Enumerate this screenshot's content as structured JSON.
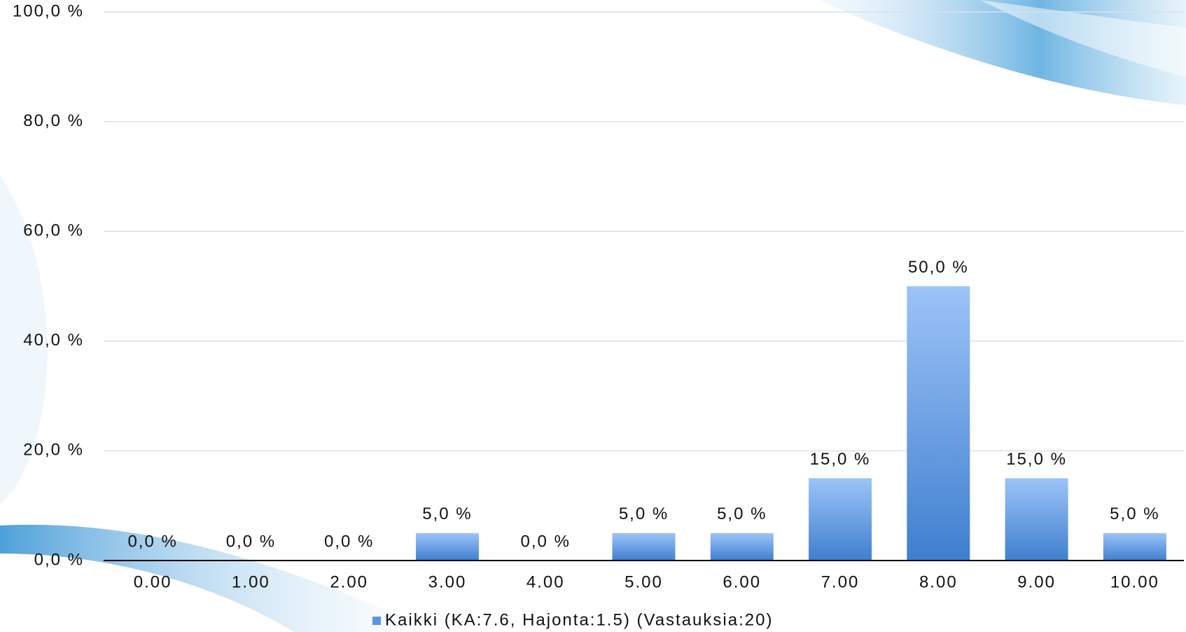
{
  "chart_data": {
    "type": "bar",
    "categories": [
      "0.00",
      "1.00",
      "2.00",
      "3.00",
      "4.00",
      "5.00",
      "6.00",
      "7.00",
      "8.00",
      "9.00",
      "10.00"
    ],
    "series": [
      {
        "name": "Kaikki (KA:7.6, Hajonta:1.5) (Vastauksia:20)",
        "color": "#5b93e0",
        "values": [
          0,
          0,
          0,
          5,
          0,
          5,
          5,
          15,
          50,
          15,
          5
        ],
        "value_labels": [
          "0,0 %",
          "0,0 %",
          "0,0 %",
          "5,0 %",
          "0,0 %",
          "5,0 %",
          "5,0 %",
          "15,0 %",
          "50,0 %",
          "15,0 %",
          "5,0 %"
        ]
      }
    ],
    "ylim": [
      0,
      100
    ],
    "yticks": [
      {
        "value": 0,
        "label": "0,0 %"
      },
      {
        "value": 20,
        "label": "20,0 %"
      },
      {
        "value": 40,
        "label": "40,0 %"
      },
      {
        "value": 60,
        "label": "60,0 %"
      },
      {
        "value": 80,
        "label": "80,0 %"
      },
      {
        "value": 100,
        "label": "100,0 %"
      }
    ],
    "grid": true,
    "legend": "bottom"
  }
}
